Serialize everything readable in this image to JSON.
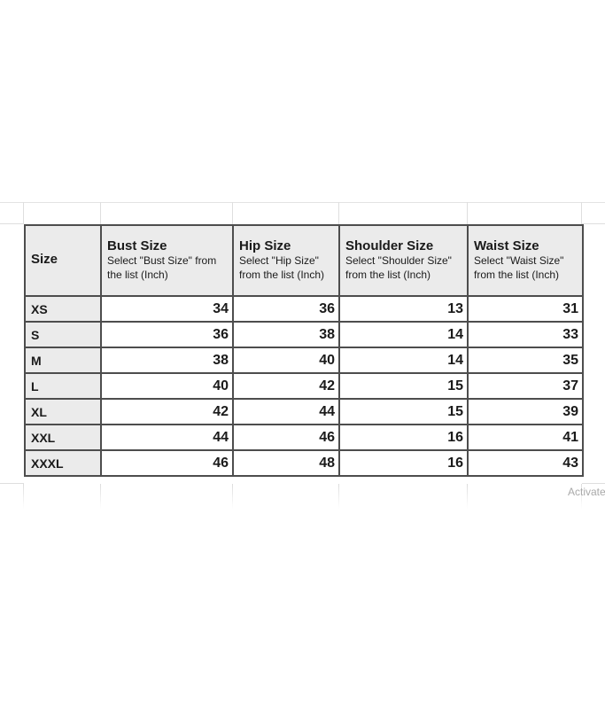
{
  "watermark": {
    "text": "Activate",
    "color": "#a9a9a9"
  },
  "table": {
    "colors": {
      "header_bg": "#ebebeb",
      "row_label_bg": "#ebebeb",
      "border": "#4d4d4d",
      "faint_gridline": "#dedede"
    },
    "columns": [
      {
        "title": "Size",
        "subtitle": ""
      },
      {
        "title": "Bust Size",
        "subtitle": "Select \"Bust Size\" from the list (Inch)"
      },
      {
        "title": "Hip Size",
        "subtitle": "Select \"Hip Size\" from the list (Inch)"
      },
      {
        "title": "Shoulder Size",
        "subtitle": "Select \"Shoulder Size\" from the list (Inch)"
      },
      {
        "title": "Waist Size",
        "subtitle": "Select \"Waist Size\" from the list (Inch)"
      }
    ],
    "rows": [
      {
        "size": "XS",
        "bust": "34",
        "hip": "36",
        "shoulder": "13",
        "waist": "31"
      },
      {
        "size": "S",
        "bust": "36",
        "hip": "38",
        "shoulder": "14",
        "waist": "33"
      },
      {
        "size": "M",
        "bust": "38",
        "hip": "40",
        "shoulder": "14",
        "waist": "35"
      },
      {
        "size": "L",
        "bust": "40",
        "hip": "42",
        "shoulder": "15",
        "waist": "37"
      },
      {
        "size": "XL",
        "bust": "42",
        "hip": "44",
        "shoulder": "15",
        "waist": "39"
      },
      {
        "size": "XXL",
        "bust": "44",
        "hip": "46",
        "shoulder": "16",
        "waist": "41"
      },
      {
        "size": "XXXL",
        "bust": "46",
        "hip": "48",
        "shoulder": "16",
        "waist": "43"
      }
    ]
  }
}
